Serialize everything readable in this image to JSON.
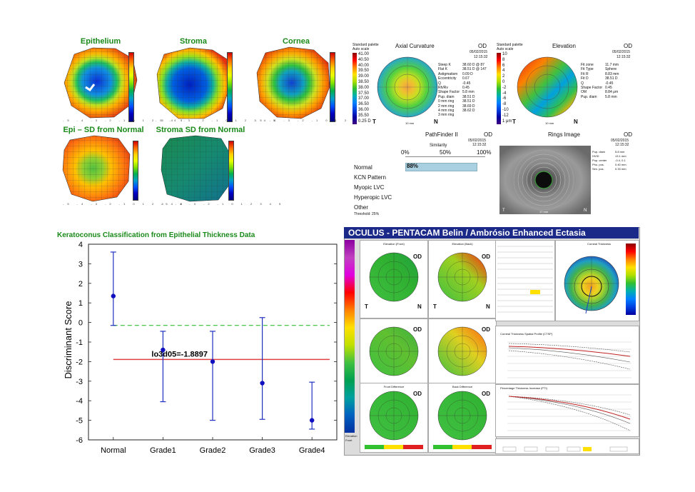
{
  "epithelial_maps": {
    "titles": [
      "Epithelium",
      "Stroma",
      "Cornea",
      "Epi – SD from Normal",
      "Stroma SD from Normal"
    ],
    "axis_ticks": [
      "-5",
      "-4",
      "-3",
      "-2",
      "-1",
      "0",
      "1",
      "2",
      "3",
      "4",
      "5"
    ]
  },
  "axial": {
    "title": "Axial Curvature",
    "eye": "OD",
    "date": "05/02/2015",
    "time": "12:15:32",
    "palette": "Standard palette",
    "scale_mode": "Auto scale",
    "scale_values": [
      "41.00",
      "40.50",
      "40.00",
      "39.50",
      "39.00",
      "38.50",
      "38.00",
      "37.50",
      "37.00",
      "36.50",
      "36.00",
      "35.50",
      "0.25 D"
    ],
    "params": [
      "Steep K",
      "Flat K",
      "Astigmatism",
      "Eccentricity",
      "Q",
      "Rh/Rv",
      "Shape Factor",
      "Pup. diam",
      "0 mm ring",
      "2 mm ring",
      "4 mm ring",
      "3 mm ring"
    ],
    "values": [
      "38.60 D @ 87",
      "38.51 D @ 147",
      "0.09 D",
      "0.67",
      "-0.45",
      "",
      "0.45",
      "5.8 mm",
      "38.51 D",
      "38.51 D",
      "38.69 D",
      "38.62 D"
    ],
    "corners": [
      "T",
      "N",
      "10 mm"
    ]
  },
  "elevation": {
    "title": "Elevation",
    "eye": "OD",
    "date": "05/02/2015",
    "time": "12:15:32",
    "palette": "Standard palette",
    "scale_mode": "Auto scale",
    "scale_values": [
      "10",
      "8",
      "6",
      "4",
      "2",
      "0",
      "-2",
      "-4",
      "-6",
      "-8",
      "-10",
      "-12",
      "1 μm"
    ],
    "params": [
      "Fit zone",
      "Fit Type",
      "Fit R",
      "Fit D",
      "Q",
      "Shape Factor",
      "OM",
      "Pup. diam"
    ],
    "values": [
      "11.7 mm",
      "Sphere",
      "8.83 mm",
      "38.51 D",
      "-0.45",
      "0.45",
      "8.84 μm",
      "5.8 mm"
    ],
    "corners": [
      "T",
      "N",
      "10 mm"
    ]
  },
  "pathfinder": {
    "title": "PathFinder II",
    "eye": "OD",
    "date": "05/02/2015",
    "time": "12:15:32",
    "similarity_label": "Similarity",
    "axis": [
      "0%",
      "50%",
      "100%"
    ],
    "categories": [
      "Normal",
      "KCN Pattern",
      "Myopic LVC",
      "Hyperopic LVC",
      "Other"
    ],
    "normal_value": "88%",
    "normal_fraction": 0.88,
    "threshold": "Threshold: 25%"
  },
  "rings": {
    "title": "Rings Image",
    "eye": "OD",
    "date": "05/02/2015",
    "time": "12:15:32",
    "params": [
      "Pup. diam",
      "HVID",
      "Pup. center",
      "Pho. pos.",
      "Sim. pos."
    ],
    "values": [
      "5.8 mm",
      "13.1 mm",
      "-0.4, 0.1",
      "0.40 mm",
      "0.33 mm"
    ],
    "corners": [
      "T",
      "N",
      "17 mm"
    ]
  },
  "chart_data": {
    "type": "scatter",
    "title": "Keratoconus Classification from Epithelial Thickness Data",
    "xlabel": "",
    "ylabel": "Discriminant Score",
    "categories": [
      "Normal",
      "Grade1",
      "Grade2",
      "Grade3",
      "Grade4"
    ],
    "values": [
      1.35,
      -1.4,
      -2.0,
      -3.1,
      -5.0
    ],
    "error_high": [
      3.6,
      -0.45,
      -0.45,
      0.25,
      -3.05
    ],
    "error_low": [
      -0.15,
      -4.05,
      -5.0,
      -4.95,
      -5.45
    ],
    "ylim": [
      -6,
      4
    ],
    "yticks": [
      "4",
      "3",
      "2",
      "1",
      "0",
      "-1",
      "-2",
      "-3",
      "-4",
      "-5",
      "-6"
    ],
    "threshold_line": -1.8897,
    "threshold_label": "lo3d05=-1.8897",
    "dashed_line": -0.15,
    "grid": false
  },
  "pentacam": {
    "title": "OCULUS  -  PENTACAM   Belin / Ambrósio Enhanced Ectasia",
    "panel_titles": [
      "Elevation (Front)",
      "Elevation (Back)",
      "Front Difference",
      "Back Difference"
    ],
    "eye": "OD",
    "corner_t": "T",
    "corner_n": "N",
    "side_title": "Corneal Thickness",
    "graph1_title": "Corneal Thickness Spatial Profile (CTSP)",
    "graph2_title": "Percentage Thickness Increase (PTI)",
    "footer_left": "Elevation",
    "footer_right": "Front"
  },
  "colors": {
    "title_green": "#1a8a1a",
    "threshold_red": "#e04040",
    "dashed_green": "#30c030",
    "errorbar_blue": "#2030c0",
    "pentacam_header": "#1b2a88"
  }
}
